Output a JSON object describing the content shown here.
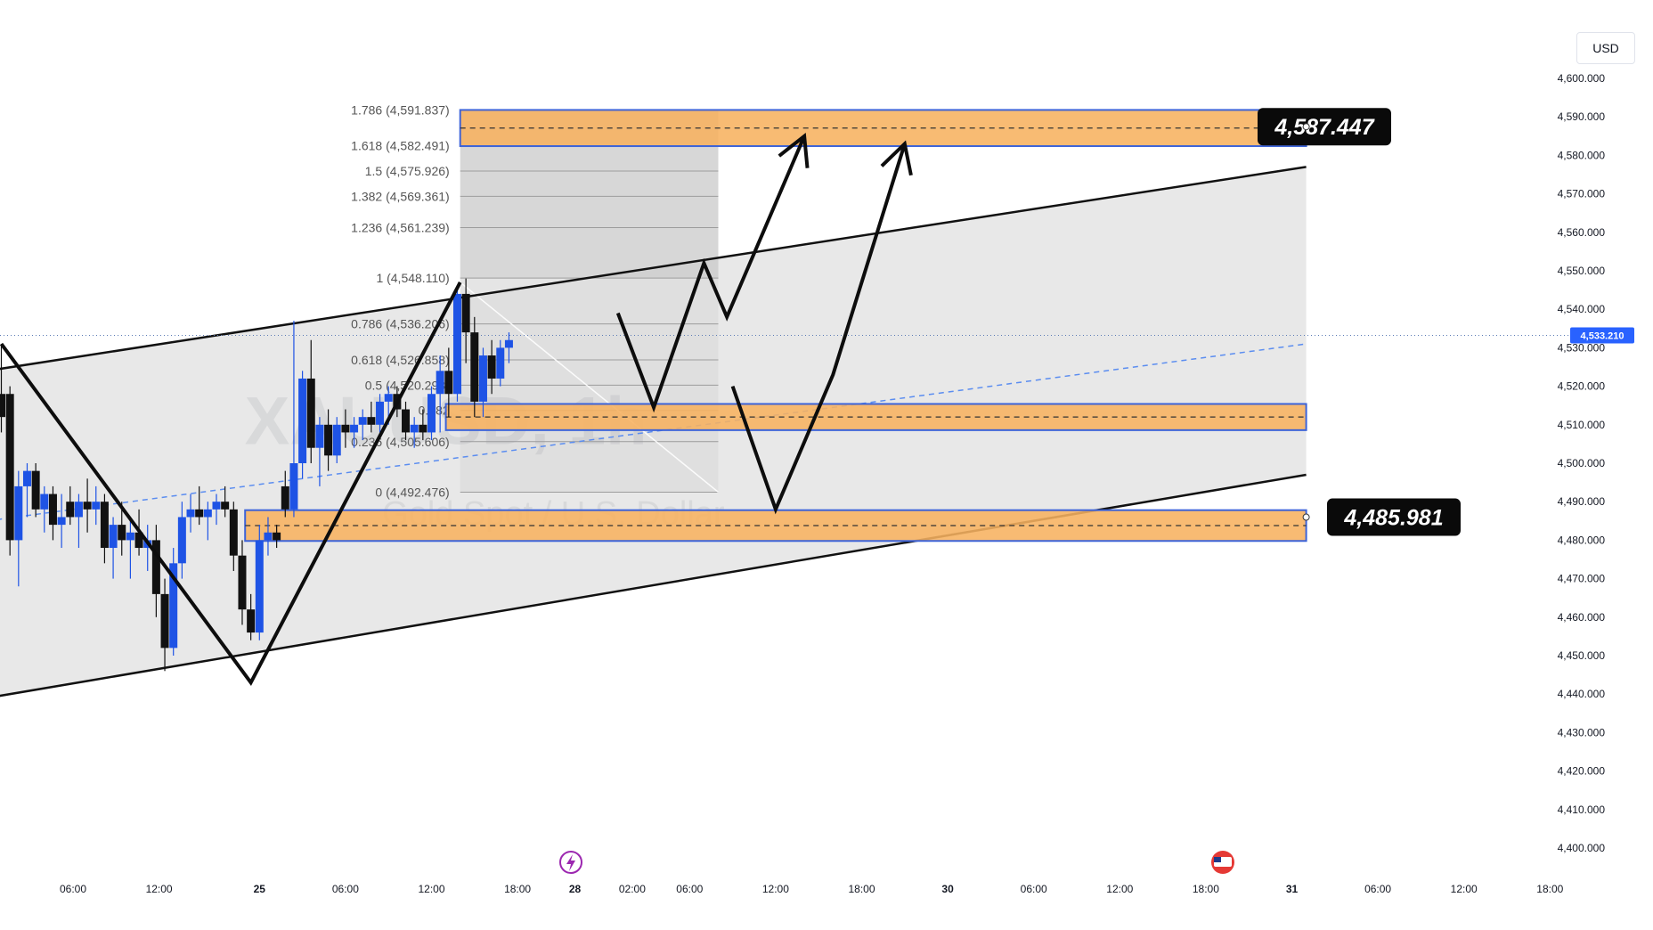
{
  "currency_button": "USD",
  "watermark": {
    "symbol": "XAUUSD, 1h",
    "description": "Gold Spot / U.S. Dollar"
  },
  "price_axis": {
    "ticks": [
      4400,
      4410,
      4420,
      4430,
      4440,
      4450,
      4460,
      4470,
      4480,
      4490,
      4500,
      4510,
      4520,
      4530,
      4540,
      4550,
      4560,
      4570,
      4580,
      4590,
      4600
    ],
    "tick_labels": [
      "4,400.000",
      "4,410.000",
      "4,420.000",
      "4,430.000",
      "4,440.000",
      "4,450.000",
      "4,460.000",
      "4,470.000",
      "4,480.000",
      "4,490.000",
      "4,500.000",
      "4,510.000",
      "4,520.000",
      "4,530.000",
      "4,540.000",
      "4,550.000",
      "4,560.000",
      "4,570.000",
      "4,580.000",
      "4,590.000",
      "4,600.000"
    ],
    "current_price": 4533.21,
    "current_price_label": "4,533.210"
  },
  "time_axis": {
    "labels": [
      {
        "label": "06:00",
        "t": 0
      },
      {
        "label": "12:00",
        "t": 6
      },
      {
        "label": "25",
        "t": 13
      },
      {
        "label": "06:00",
        "t": 19
      },
      {
        "label": "12:00",
        "t": 25
      },
      {
        "label": "18:00",
        "t": 31
      },
      {
        "label": "28",
        "t": 35
      },
      {
        "label": "02:00",
        "t": 39
      },
      {
        "label": "06:00",
        "t": 43
      },
      {
        "label": "12:00",
        "t": 49
      },
      {
        "label": "18:00",
        "t": 55
      },
      {
        "label": "30",
        "t": 61
      },
      {
        "label": "06:00",
        "t": 67
      },
      {
        "label": "12:00",
        "t": 73
      },
      {
        "label": "18:00",
        "t": 79
      },
      {
        "label": "31",
        "t": 85
      },
      {
        "label": "06:00",
        "t": 91
      },
      {
        "label": "12:00",
        "t": 97
      },
      {
        "label": "18:00",
        "t": 103
      }
    ]
  },
  "chart_data": {
    "type": "candlestick",
    "symbol": "XAUUSD, 1h",
    "ylim": [
      4400,
      4600
    ],
    "candles": [
      {
        "t": -5,
        "o": 4518,
        "h": 4531,
        "c": 4512,
        "l": 4508
      },
      {
        "t": -4.4,
        "o": 4518,
        "h": 4520,
        "l": 4476,
        "c": 4480
      },
      {
        "t": -3.8,
        "o": 4480,
        "h": 4498,
        "l": 4468,
        "c": 4494
      },
      {
        "t": -3.2,
        "o": 4494,
        "h": 4500,
        "l": 4486,
        "c": 4498
      },
      {
        "t": -2.6,
        "o": 4498,
        "h": 4500,
        "l": 4486,
        "c": 4488
      },
      {
        "t": -2.0,
        "o": 4488,
        "h": 4494,
        "l": 4482,
        "c": 4492
      },
      {
        "t": -1.4,
        "o": 4492,
        "h": 4494,
        "l": 4480,
        "c": 4484
      },
      {
        "t": -0.8,
        "o": 4484,
        "h": 4492,
        "l": 4478,
        "c": 4486
      },
      {
        "t": -0.2,
        "o": 4490,
        "h": 4494,
        "l": 4484,
        "c": 4486
      },
      {
        "t": 0.4,
        "o": 4486,
        "h": 4492,
        "l": 4478,
        "c": 4490
      },
      {
        "t": 1.0,
        "o": 4490,
        "h": 4496,
        "l": 4482,
        "c": 4488
      },
      {
        "t": 1.6,
        "o": 4488,
        "h": 4494,
        "l": 4484,
        "c": 4490
      },
      {
        "t": 2.2,
        "o": 4490,
        "h": 4492,
        "l": 4474,
        "c": 4478
      },
      {
        "t": 2.8,
        "o": 4478,
        "h": 4486,
        "l": 4470,
        "c": 4484
      },
      {
        "t": 3.4,
        "o": 4484,
        "h": 4490,
        "l": 4476,
        "c": 4480
      },
      {
        "t": 4.0,
        "o": 4480,
        "h": 4486,
        "l": 4470,
        "c": 4482
      },
      {
        "t": 4.6,
        "o": 4482,
        "h": 4488,
        "l": 4476,
        "c": 4478
      },
      {
        "t": 5.2,
        "o": 4478,
        "h": 4484,
        "l": 4472,
        "c": 4480
      },
      {
        "t": 5.8,
        "o": 4480,
        "h": 4484,
        "l": 4460,
        "c": 4466
      },
      {
        "t": 6.4,
        "o": 4466,
        "h": 4470,
        "l": 4446,
        "c": 4452
      },
      {
        "t": 7.0,
        "o": 4452,
        "h": 4478,
        "l": 4450,
        "c": 4474
      },
      {
        "t": 7.6,
        "o": 4474,
        "h": 4490,
        "l": 4470,
        "c": 4486
      },
      {
        "t": 8.2,
        "o": 4486,
        "h": 4492,
        "l": 4482,
        "c": 4488
      },
      {
        "t": 8.8,
        "o": 4488,
        "h": 4494,
        "l": 4484,
        "c": 4486
      },
      {
        "t": 9.4,
        "o": 4486,
        "h": 4490,
        "l": 4480,
        "c": 4488
      },
      {
        "t": 10.0,
        "o": 4488,
        "h": 4492,
        "l": 4484,
        "c": 4490
      },
      {
        "t": 10.6,
        "o": 4490,
        "h": 4494,
        "l": 4486,
        "c": 4488
      },
      {
        "t": 11.2,
        "o": 4488,
        "h": 4490,
        "l": 4472,
        "c": 4476
      },
      {
        "t": 11.8,
        "o": 4476,
        "h": 4480,
        "l": 4458,
        "c": 4462
      },
      {
        "t": 12.4,
        "o": 4462,
        "h": 4466,
        "l": 4454,
        "c": 4456
      },
      {
        "t": 13.0,
        "o": 4456,
        "h": 4484,
        "l": 4454,
        "c": 4480
      },
      {
        "t": 13.6,
        "o": 4480,
        "h": 4486,
        "l": 4476,
        "c": 4482
      },
      {
        "t": 14.2,
        "o": 4482,
        "h": 4484,
        "l": 4478,
        "c": 4480
      },
      {
        "t": 14.8,
        "o": 4494,
        "h": 4498,
        "l": 4486,
        "c": 4488
      },
      {
        "t": 15.4,
        "o": 4488,
        "h": 4537,
        "l": 4486,
        "c": 4500
      },
      {
        "t": 16.0,
        "o": 4500,
        "h": 4524,
        "l": 4496,
        "c": 4522
      },
      {
        "t": 16.6,
        "o": 4522,
        "h": 4532,
        "l": 4500,
        "c": 4504
      },
      {
        "t": 17.2,
        "o": 4504,
        "h": 4512,
        "l": 4494,
        "c": 4510
      },
      {
        "t": 17.8,
        "o": 4510,
        "h": 4514,
        "l": 4498,
        "c": 4502
      },
      {
        "t": 18.4,
        "o": 4502,
        "h": 4512,
        "l": 4500,
        "c": 4510
      },
      {
        "t": 19.0,
        "o": 4510,
        "h": 4514,
        "l": 4504,
        "c": 4508
      },
      {
        "t": 19.6,
        "o": 4508,
        "h": 4512,
        "l": 4504,
        "c": 4510
      },
      {
        "t": 20.2,
        "o": 4510,
        "h": 4514,
        "l": 4506,
        "c": 4512
      },
      {
        "t": 20.8,
        "o": 4512,
        "h": 4516,
        "l": 4508,
        "c": 4510
      },
      {
        "t": 21.4,
        "o": 4510,
        "h": 4518,
        "l": 4508,
        "c": 4516
      },
      {
        "t": 22.0,
        "o": 4516,
        "h": 4520,
        "l": 4510,
        "c": 4518
      },
      {
        "t": 22.6,
        "o": 4518,
        "h": 4520,
        "l": 4512,
        "c": 4514
      },
      {
        "t": 23.2,
        "o": 4514,
        "h": 4516,
        "l": 4506,
        "c": 4508
      },
      {
        "t": 23.8,
        "o": 4508,
        "h": 4512,
        "l": 4504,
        "c": 4510
      },
      {
        "t": 24.4,
        "o": 4510,
        "h": 4514,
        "l": 4506,
        "c": 4508
      },
      {
        "t": 25.0,
        "o": 4508,
        "h": 4520,
        "l": 4506,
        "c": 4518
      },
      {
        "t": 25.6,
        "o": 4518,
        "h": 4528,
        "l": 4508,
        "c": 4524
      },
      {
        "t": 26.2,
        "o": 4524,
        "h": 4530,
        "l": 4512,
        "c": 4518
      },
      {
        "t": 26.8,
        "o": 4518,
        "h": 4546,
        "l": 4516,
        "c": 4544
      },
      {
        "t": 27.4,
        "o": 4544,
        "h": 4548,
        "l": 4526,
        "c": 4534
      },
      {
        "t": 28.0,
        "o": 4534,
        "h": 4538,
        "l": 4512,
        "c": 4516
      },
      {
        "t": 28.6,
        "o": 4516,
        "h": 4530,
        "l": 4512,
        "c": 4528
      },
      {
        "t": 29.2,
        "o": 4528,
        "h": 4532,
        "l": 4518,
        "c": 4522
      },
      {
        "t": 29.8,
        "o": 4522,
        "h": 4532,
        "l": 4520,
        "c": 4530
      },
      {
        "t": 30.4,
        "o": 4530,
        "h": 4534,
        "l": 4526,
        "c": 4532
      }
    ],
    "fibonacci_levels": [
      {
        "ratio": "1.786",
        "price": 4591.837,
        "label": "1.786 (4,591.837)"
      },
      {
        "ratio": "1.618",
        "price": 4582.491,
        "label": "1.618 (4,582.491)"
      },
      {
        "ratio": "1.5",
        "price": 4575.926,
        "label": "1.5 (4,575.926)"
      },
      {
        "ratio": "1.382",
        "price": 4569.361,
        "label": "1.382 (4,569.361)"
      },
      {
        "ratio": "1.236",
        "price": 4561.239,
        "label": "1.236 (4,561.239)"
      },
      {
        "ratio": "1",
        "price": 4548.11,
        "label": "1 (4,548.110)"
      },
      {
        "ratio": "0.786",
        "price": 4536.206,
        "label": "0.786 (4,536.206)"
      },
      {
        "ratio": "0.618",
        "price": 4526.858,
        "label": "0.618 (4,526.858)"
      },
      {
        "ratio": "0.5",
        "price": 4520.293,
        "label": "0.5 (4,520.293)"
      },
      {
        "ratio": "0.382",
        "price": 4513.728,
        "label": "0.382"
      },
      {
        "ratio": "0.236",
        "price": 4505.606,
        "label": "0.236 (4,505.606)"
      },
      {
        "ratio": "0",
        "price": 4492.476,
        "label": "0 (4,492.476)"
      }
    ],
    "zones": [
      {
        "name": "target-zone",
        "top": 4591.8,
        "bottom": 4582.4,
        "t_start": 27,
        "t_end": 86
      },
      {
        "name": "mid-zone",
        "top": 4515.4,
        "bottom": 4508.6,
        "t_start": 26,
        "t_end": 86
      },
      {
        "name": "support-zone",
        "top": 4487.8,
        "bottom": 4479.8,
        "t_start": 12,
        "t_end": 86
      }
    ],
    "callouts": [
      {
        "label": "4,587.447",
        "price": 4587.447
      },
      {
        "label": "4,485.981",
        "price": 4485.981
      }
    ],
    "channel": {
      "upper": [
        {
          "t": -6,
          "p": 4524
        },
        {
          "t": 86,
          "p": 4577
        }
      ],
      "lower": [
        {
          "t": -6,
          "p": 4439
        },
        {
          "t": 86,
          "p": 4497
        }
      ]
    },
    "paths": {
      "past_zigzag": [
        {
          "t": -5,
          "p": 4531
        },
        {
          "t": 12.4,
          "p": 4443
        },
        {
          "t": 27,
          "p": 4547
        }
      ],
      "bullish_projection": [
        {
          "t": 38,
          "p": 4539
        },
        {
          "t": 40.5,
          "p": 4514.5
        },
        {
          "t": 44,
          "p": 4552
        },
        {
          "t": 45.6,
          "p": 4538
        },
        {
          "t": 51,
          "p": 4585
        }
      ],
      "bearish_projection": [
        {
          "t": 46,
          "p": 4520
        },
        {
          "t": 49,
          "p": 4488
        },
        {
          "t": 53,
          "p": 4523
        },
        {
          "t": 58,
          "p": 4583
        }
      ]
    }
  }
}
